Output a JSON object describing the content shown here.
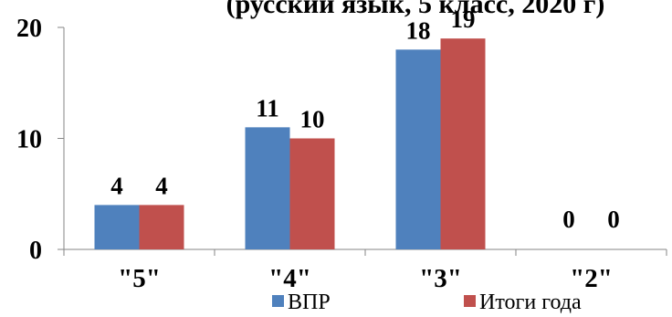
{
  "chart_data": {
    "type": "bar",
    "title": "(русский язык, 5 класс, 2020 г)",
    "categories": [
      "\"5\"",
      "\"4\"",
      "\"3\"",
      "\"2\""
    ],
    "series": [
      {
        "name": "ВПР",
        "values": [
          4,
          11,
          18,
          0
        ],
        "color": "#4f81bd"
      },
      {
        "name": "Итоги года",
        "values": [
          4,
          10,
          19,
          0
        ],
        "color": "#c0504d"
      }
    ],
    "yticks": [
      0,
      10,
      20
    ],
    "ylim": [
      0,
      20
    ],
    "xlabel": "",
    "ylabel": "",
    "grid": false,
    "legend_position": "bottom-right",
    "data_labels": true
  }
}
